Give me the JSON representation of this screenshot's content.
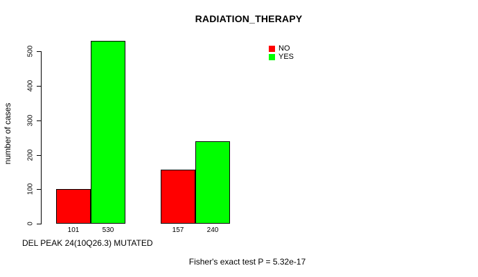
{
  "chart_data": {
    "type": "bar",
    "title": "RADIATION_THERAPY",
    "xlabel": "DEL PEAK 24(10Q26.3) MUTATED",
    "ylabel": "number of cases",
    "ylim": [
      0,
      530
    ],
    "yticks": [
      0,
      100,
      200,
      300,
      400,
      500
    ],
    "grid": false,
    "legend_position": "top-right",
    "legend": [
      {
        "label": "NO",
        "color": "#FF0000"
      },
      {
        "label": "YES",
        "color": "#00FF00"
      }
    ],
    "series": [
      {
        "name": "NO",
        "color": "#FF0000",
        "values": [
          101,
          157
        ]
      },
      {
        "name": "YES",
        "color": "#00FF00",
        "values": [
          530,
          240
        ]
      }
    ],
    "bars": [
      {
        "group": 0,
        "series": "NO",
        "value": 101,
        "label": "101",
        "color": "#FF0000"
      },
      {
        "group": 0,
        "series": "YES",
        "value": 530,
        "label": "530",
        "color": "#00FF00"
      },
      {
        "group": 1,
        "series": "NO",
        "value": 157,
        "label": "157",
        "color": "#FF0000"
      },
      {
        "group": 1,
        "series": "YES",
        "value": 240,
        "label": "240",
        "color": "#00FF00"
      }
    ],
    "annotation": "Fisher's exact test P = 5.32e-17"
  },
  "colors": {
    "background": "#FFFFFF",
    "text": "#000000",
    "axis": "#000000",
    "bar_border": "#000000",
    "no": "#FF0000",
    "yes": "#00FF00"
  }
}
